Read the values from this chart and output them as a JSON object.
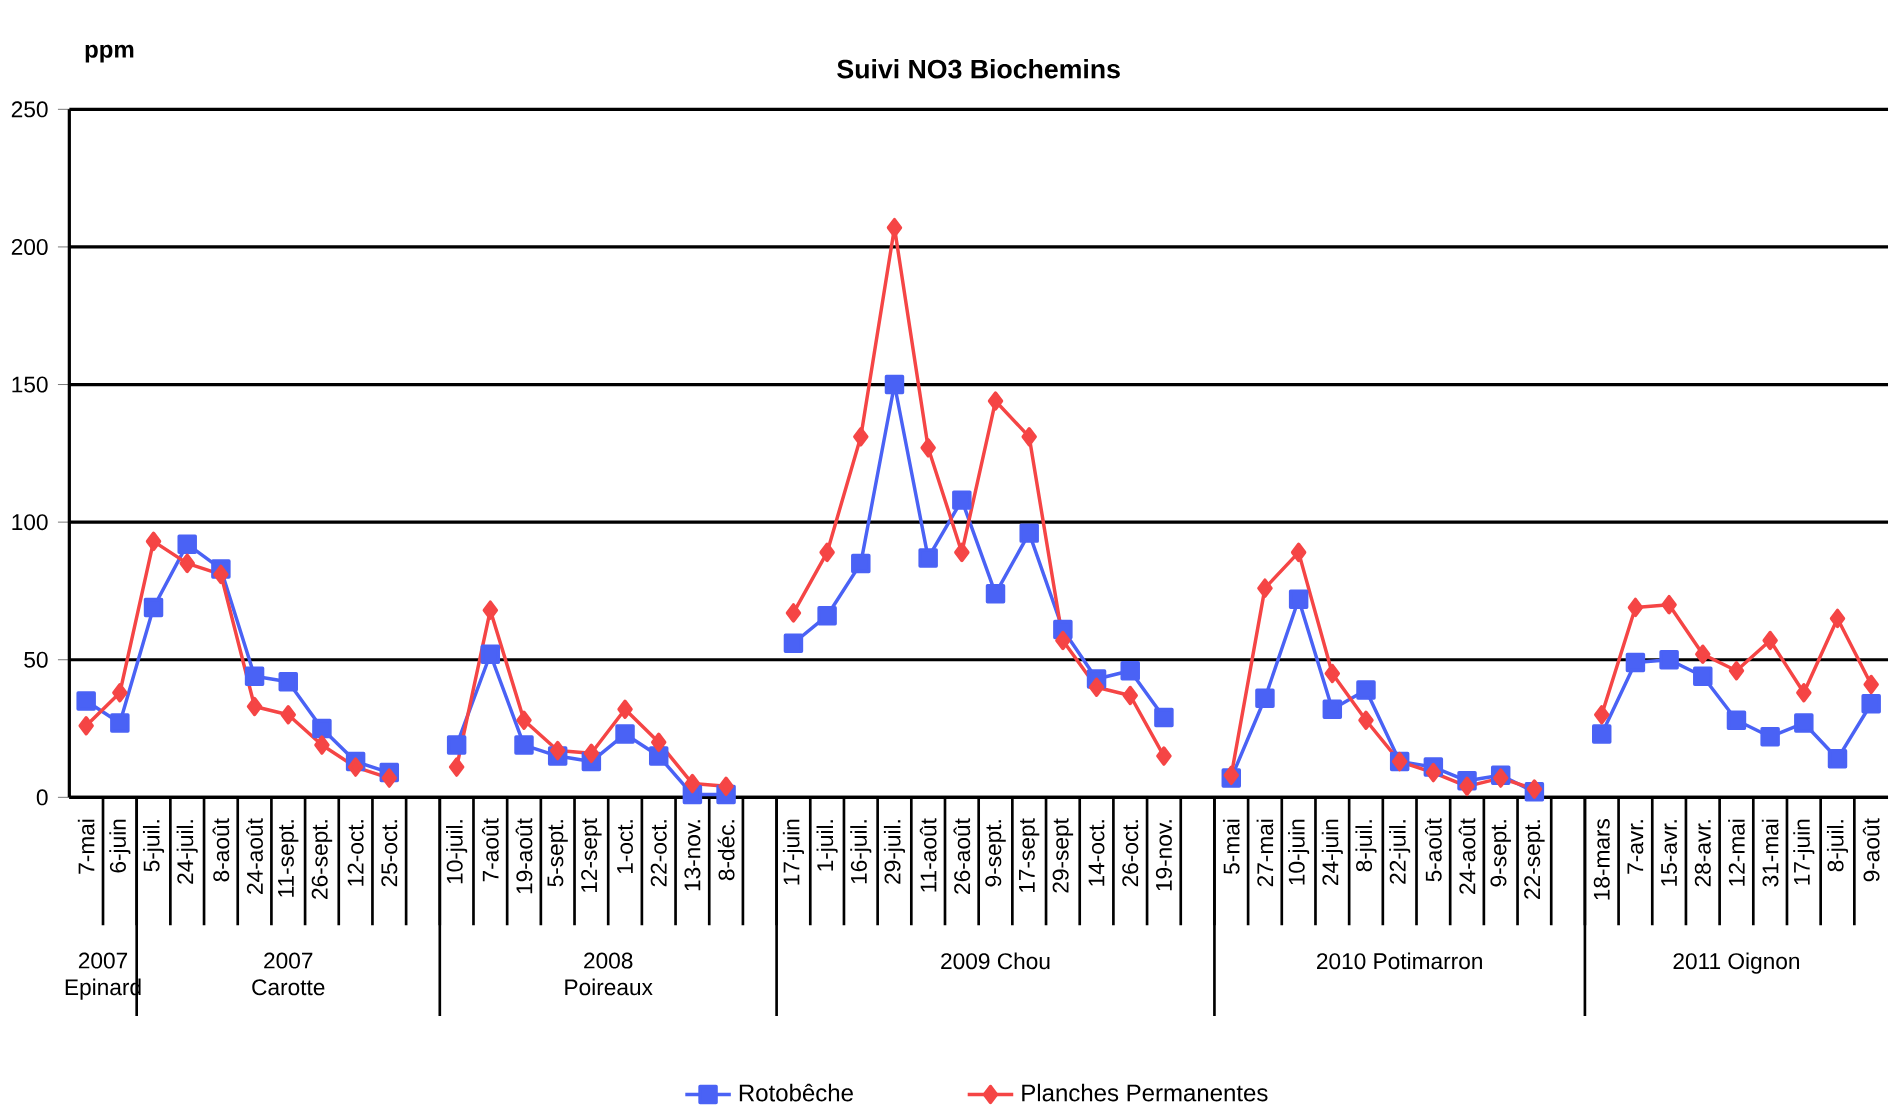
{
  "chart_data": {
    "type": "line",
    "title": "Suivi NO3 Biochemins",
    "ylabel": "ppm",
    "categories": [
      "7-mai",
      "6-juin",
      "5-juil.",
      "24-juil.",
      "8-août",
      "24-août",
      "11-sept.",
      "26-sept.",
      "12-oct.",
      "25-oct.",
      null,
      "10-juil.",
      "7-août",
      "19-août",
      "5-sept.",
      "12-sept",
      "1-oct.",
      "22-oct.",
      "13-nov.",
      "8-déc.",
      null,
      "17-juin",
      "1-juil.",
      "16-juil.",
      "29-juil.",
      "11-août",
      "26-août",
      "9-sept.",
      "17-sept",
      "29-sept",
      "14-oct.",
      "26-oct.",
      "19-nov.",
      null,
      "5-mai",
      "27-mai",
      "10-juin",
      "24-juin",
      "8-juil.",
      "22-juil.",
      "5-août",
      "24-août",
      "9-sept.",
      "22-sept.",
      null,
      "18-mars",
      "7-avr.",
      "15-avr.",
      "28-avr.",
      "12-mai",
      "31-mai",
      "17-juin",
      "8-juil.",
      "9-août"
    ],
    "series": [
      {
        "name": "Rotobêche",
        "color": "#4a62f5",
        "marker": "square",
        "values": [
          35,
          27,
          69,
          92,
          83,
          44,
          42,
          25,
          13,
          9,
          null,
          19,
          52,
          19,
          15,
          13,
          23,
          15,
          1,
          1,
          null,
          56,
          66,
          85,
          150,
          87,
          108,
          74,
          96,
          61,
          43,
          46,
          29,
          null,
          7,
          36,
          72,
          32,
          39,
          13,
          11,
          6,
          8,
          2,
          null,
          23,
          49,
          50,
          44,
          28,
          22,
          27,
          14,
          34
        ]
      },
      {
        "name": "Planches Permanentes",
        "color": "#f54545",
        "marker": "diamond",
        "values": [
          26,
          38,
          93,
          85,
          81,
          33,
          30,
          19,
          11,
          7,
          null,
          11,
          68,
          28,
          17,
          16,
          32,
          20,
          5,
          4,
          null,
          67,
          89,
          131,
          207,
          127,
          89,
          144,
          131,
          57,
          40,
          37,
          15,
          null,
          8,
          76,
          89,
          45,
          28,
          13,
          9,
          4,
          7,
          3,
          null,
          30,
          69,
          70,
          52,
          46,
          57,
          38,
          65,
          41
        ]
      }
    ],
    "annotations": [
      "2007 Epinard",
      "2007 Carotte",
      "2008 Poireaux",
      "2009 Chou",
      "2010 Potimarron",
      "2011 Oignon"
    ],
    "ylim": [
      0,
      250
    ],
    "yticks": [
      0,
      50,
      100,
      150,
      200,
      250
    ],
    "grid": "y",
    "legend": "bottom"
  }
}
